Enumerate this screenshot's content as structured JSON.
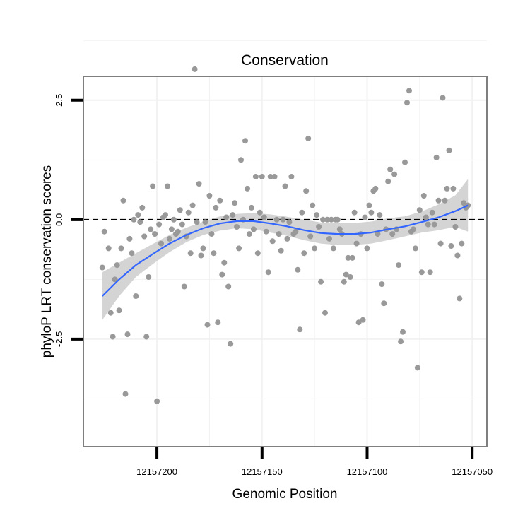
{
  "chart_data": {
    "type": "scatter",
    "title": "Conservation",
    "xlabel": "Genomic Position",
    "ylabel": "phyloP LRT conservation scores",
    "x_reversed": true,
    "xlim": [
      12157235,
      12157043
    ],
    "ylim": [
      -4.75,
      3.0
    ],
    "x_ticks": [
      12157200,
      12157150,
      12157100,
      12157050
    ],
    "x_tick_labels": [
      "12157200",
      "12157150",
      "12157100",
      "12157050"
    ],
    "y_ticks": [
      2.5,
      0.0,
      -2.5
    ],
    "y_tick_labels": [
      "2.5",
      "0.0",
      "-2.5"
    ],
    "grid": true,
    "reference_line": {
      "y": 0.0,
      "style": "dashed",
      "color": "#000000"
    },
    "colors": {
      "points": "#999999",
      "smooth_line": "#3366ff",
      "confidence_band": "#d4d4d4",
      "panel_border": "#7f7f7f",
      "grid": "#f2f2f2"
    },
    "points": [
      {
        "x": 12157226,
        "y": -1.0
      },
      {
        "x": 12157225,
        "y": -0.25
      },
      {
        "x": 12157223,
        "y": -0.6
      },
      {
        "x": 12157222,
        "y": -1.95
      },
      {
        "x": 12157221,
        "y": -2.45
      },
      {
        "x": 12157220,
        "y": -1.25
      },
      {
        "x": 12157219,
        "y": -0.95
      },
      {
        "x": 12157218,
        "y": -1.9
      },
      {
        "x": 12157217,
        "y": -0.6
      },
      {
        "x": 12157216,
        "y": 0.4
      },
      {
        "x": 12157215,
        "y": -3.65
      },
      {
        "x": 12157214,
        "y": -2.4
      },
      {
        "x": 12157213,
        "y": -0.4
      },
      {
        "x": 12157212,
        "y": -0.7
      },
      {
        "x": 12157211,
        "y": 0.0
      },
      {
        "x": 12157210,
        "y": -1.6
      },
      {
        "x": 12157209,
        "y": 0.1
      },
      {
        "x": 12157208,
        "y": -0.05
      },
      {
        "x": 12157207,
        "y": 0.25
      },
      {
        "x": 12157206,
        "y": -0.35
      },
      {
        "x": 12157205,
        "y": -2.45
      },
      {
        "x": 12157204,
        "y": -1.2
      },
      {
        "x": 12157203,
        "y": -0.2
      },
      {
        "x": 12157202,
        "y": 0.7
      },
      {
        "x": 12157201,
        "y": -0.3
      },
      {
        "x": 12157200,
        "y": -3.8
      },
      {
        "x": 12157199,
        "y": -0.1
      },
      {
        "x": 12157198,
        "y": -0.5
      },
      {
        "x": 12157197,
        "y": 0.05
      },
      {
        "x": 12157196,
        "y": 0.1
      },
      {
        "x": 12157195,
        "y": 0.7
      },
      {
        "x": 12157194,
        "y": -0.4
      },
      {
        "x": 12157193,
        "y": -0.2
      },
      {
        "x": 12157192,
        "y": 0.0
      },
      {
        "x": 12157191,
        "y": -0.3
      },
      {
        "x": 12157190,
        "y": -0.25
      },
      {
        "x": 12157189,
        "y": 0.2
      },
      {
        "x": 12157188,
        "y": -0.1
      },
      {
        "x": 12157187,
        "y": -1.4
      },
      {
        "x": 12157186,
        "y": -0.35
      },
      {
        "x": 12157185,
        "y": 0.15
      },
      {
        "x": 12157184,
        "y": -0.7
      },
      {
        "x": 12157183,
        "y": 0.3
      },
      {
        "x": 12157182,
        "y": 3.15
      },
      {
        "x": 12157181,
        "y": -0.05
      },
      {
        "x": 12157180,
        "y": 0.75
      },
      {
        "x": 12157179,
        "y": -0.75
      },
      {
        "x": 12157178,
        "y": -0.6
      },
      {
        "x": 12157177,
        "y": -0.05
      },
      {
        "x": 12157176,
        "y": -2.2
      },
      {
        "x": 12157175,
        "y": 0.5
      },
      {
        "x": 12157174,
        "y": -0.3
      },
      {
        "x": 12157173,
        "y": -0.7
      },
      {
        "x": 12157172,
        "y": 0.25
      },
      {
        "x": 12157171,
        "y": -2.15
      },
      {
        "x": 12157170,
        "y": 0.4
      },
      {
        "x": 12157169,
        "y": -1.15
      },
      {
        "x": 12157168,
        "y": -0.9
      },
      {
        "x": 12157167,
        "y": 0.05
      },
      {
        "x": 12157166,
        "y": -1.4
      },
      {
        "x": 12157165,
        "y": -2.6
      },
      {
        "x": 12157164,
        "y": 0.1
      },
      {
        "x": 12157163,
        "y": 0.35
      },
      {
        "x": 12157162,
        "y": -0.15
      },
      {
        "x": 12157161,
        "y": -0.6
      },
      {
        "x": 12157160,
        "y": 1.25
      },
      {
        "x": 12157159,
        "y": 0.0
      },
      {
        "x": 12157158,
        "y": 1.65
      },
      {
        "x": 12157157,
        "y": 0.65
      },
      {
        "x": 12157156,
        "y": -0.3
      },
      {
        "x": 12157155,
        "y": 0.25
      },
      {
        "x": 12157154,
        "y": -0.2
      },
      {
        "x": 12157153,
        "y": 0.9
      },
      {
        "x": 12157152,
        "y": -0.7
      },
      {
        "x": 12157151,
        "y": 0.15
      },
      {
        "x": 12157150,
        "y": 0.9
      },
      {
        "x": 12157149,
        "y": 0.05
      },
      {
        "x": 12157148,
        "y": -0.25
      },
      {
        "x": 12157147,
        "y": -1.1
      },
      {
        "x": 12157146,
        "y": 0.9
      },
      {
        "x": 12157145,
        "y": -0.45
      },
      {
        "x": 12157144,
        "y": 0.9
      },
      {
        "x": 12157143,
        "y": 0.0
      },
      {
        "x": 12157142,
        "y": -0.3
      },
      {
        "x": 12157141,
        "y": -0.65
      },
      {
        "x": 12157140,
        "y": 0.0
      },
      {
        "x": 12157139,
        "y": 0.7
      },
      {
        "x": 12157138,
        "y": -0.4
      },
      {
        "x": 12157137,
        "y": -0.05
      },
      {
        "x": 12157136,
        "y": 0.9
      },
      {
        "x": 12157135,
        "y": -0.3
      },
      {
        "x": 12157134,
        "y": -0.25
      },
      {
        "x": 12157133,
        "y": -1.05
      },
      {
        "x": 12157132,
        "y": -2.3
      },
      {
        "x": 12157131,
        "y": 0.15
      },
      {
        "x": 12157130,
        "y": -0.7
      },
      {
        "x": 12157129,
        "y": 0.6
      },
      {
        "x": 12157128,
        "y": 1.7
      },
      {
        "x": 12157127,
        "y": -0.35
      },
      {
        "x": 12157126,
        "y": 0.3
      },
      {
        "x": 12157125,
        "y": -0.6
      },
      {
        "x": 12157124,
        "y": 0.1
      },
      {
        "x": 12157123,
        "y": -0.15
      },
      {
        "x": 12157122,
        "y": -1.3
      },
      {
        "x": 12157121,
        "y": 0.0
      },
      {
        "x": 12157120,
        "y": -1.95
      },
      {
        "x": 12157119,
        "y": 0.0
      },
      {
        "x": 12157118,
        "y": -0.4
      },
      {
        "x": 12157117,
        "y": 0.0
      },
      {
        "x": 12157116,
        "y": -0.6
      },
      {
        "x": 12157115,
        "y": 0.0
      },
      {
        "x": 12157114,
        "y": 0.0
      },
      {
        "x": 12157113,
        "y": -0.2
      },
      {
        "x": 12157112,
        "y": -0.3
      },
      {
        "x": 12157111,
        "y": -1.3
      },
      {
        "x": 12157110,
        "y": -1.15
      },
      {
        "x": 12157109,
        "y": -0.8
      },
      {
        "x": 12157108,
        "y": -1.2
      },
      {
        "x": 12157107,
        "y": -0.8
      },
      {
        "x": 12157106,
        "y": 0.15
      },
      {
        "x": 12157105,
        "y": -0.5
      },
      {
        "x": 12157104,
        "y": -2.15
      },
      {
        "x": 12157103,
        "y": -0.3
      },
      {
        "x": 12157102,
        "y": -2.1
      },
      {
        "x": 12157101,
        "y": 0.05
      },
      {
        "x": 12157100,
        "y": -0.6
      },
      {
        "x": 12157099,
        "y": 0.3
      },
      {
        "x": 12157098,
        "y": 0.15
      },
      {
        "x": 12157097,
        "y": 0.6
      },
      {
        "x": 12157096,
        "y": 0.65
      },
      {
        "x": 12157095,
        "y": -0.3
      },
      {
        "x": 12157094,
        "y": 0.1
      },
      {
        "x": 12157093,
        "y": -1.35
      },
      {
        "x": 12157092,
        "y": -1.75
      },
      {
        "x": 12157091,
        "y": -0.2
      },
      {
        "x": 12157090,
        "y": 0.8
      },
      {
        "x": 12157089,
        "y": 1.05
      },
      {
        "x": 12157088,
        "y": -0.3
      },
      {
        "x": 12157087,
        "y": 0.95
      },
      {
        "x": 12157086,
        "y": -0.2
      },
      {
        "x": 12157085,
        "y": -0.95
      },
      {
        "x": 12157084,
        "y": -2.55
      },
      {
        "x": 12157083,
        "y": -2.35
      },
      {
        "x": 12157082,
        "y": 1.2
      },
      {
        "x": 12157081,
        "y": 2.45
      },
      {
        "x": 12157080,
        "y": 2.7
      },
      {
        "x": 12157079,
        "y": -0.25
      },
      {
        "x": 12157078,
        "y": -0.2
      },
      {
        "x": 12157077,
        "y": -0.6
      },
      {
        "x": 12157076,
        "y": -3.1
      },
      {
        "x": 12157075,
        "y": 0.2
      },
      {
        "x": 12157074,
        "y": -1.1
      },
      {
        "x": 12157073,
        "y": 0.5
      },
      {
        "x": 12157072,
        "y": 0.05
      },
      {
        "x": 12157071,
        "y": -0.1
      },
      {
        "x": 12157070,
        "y": -1.1
      },
      {
        "x": 12157069,
        "y": 0.15
      },
      {
        "x": 12157068,
        "y": -0.1
      },
      {
        "x": 12157067,
        "y": 1.3
      },
      {
        "x": 12157066,
        "y": 0.4
      },
      {
        "x": 12157065,
        "y": -0.5
      },
      {
        "x": 12157064,
        "y": 2.55
      },
      {
        "x": 12157063,
        "y": 0.4
      },
      {
        "x": 12157062,
        "y": 0.65
      },
      {
        "x": 12157061,
        "y": 1.45
      },
      {
        "x": 12157060,
        "y": -0.55
      },
      {
        "x": 12157059,
        "y": 0.65
      },
      {
        "x": 12157058,
        "y": -0.15
      },
      {
        "x": 12157057,
        "y": -0.75
      },
      {
        "x": 12157056,
        "y": -1.65
      },
      {
        "x": 12157055,
        "y": -0.5
      },
      {
        "x": 12157054,
        "y": 0.35
      },
      {
        "x": 12157053,
        "y": 0.25
      },
      {
        "x": 12157052,
        "y": 0.3
      }
    ],
    "smooth": {
      "x": [
        12157226,
        12157218,
        12157210,
        12157202,
        12157194,
        12157186,
        12157178,
        12157170,
        12157162,
        12157154,
        12157146,
        12157138,
        12157130,
        12157122,
        12157114,
        12157106,
        12157098,
        12157090,
        12157082,
        12157074,
        12157066,
        12157058,
        12157052
      ],
      "y": [
        -1.6,
        -1.25,
        -0.95,
        -0.72,
        -0.5,
        -0.32,
        -0.18,
        -0.08,
        -0.03,
        -0.03,
        -0.08,
        -0.14,
        -0.22,
        -0.28,
        -0.3,
        -0.3,
        -0.27,
        -0.2,
        -0.14,
        -0.05,
        0.05,
        0.18,
        0.3
      ],
      "lower": [
        -2.1,
        -1.6,
        -1.2,
        -0.93,
        -0.68,
        -0.47,
        -0.32,
        -0.23,
        -0.18,
        -0.2,
        -0.27,
        -0.34,
        -0.43,
        -0.5,
        -0.53,
        -0.53,
        -0.5,
        -0.43,
        -0.35,
        -0.27,
        -0.22,
        -0.15,
        -0.25
      ],
      "upper": [
        -1.1,
        -0.9,
        -0.7,
        -0.51,
        -0.32,
        -0.17,
        -0.04,
        0.07,
        0.12,
        0.14,
        0.11,
        0.06,
        0.0,
        -0.06,
        -0.07,
        -0.07,
        -0.04,
        0.03,
        0.07,
        0.17,
        0.32,
        0.51,
        0.85
      ]
    }
  }
}
